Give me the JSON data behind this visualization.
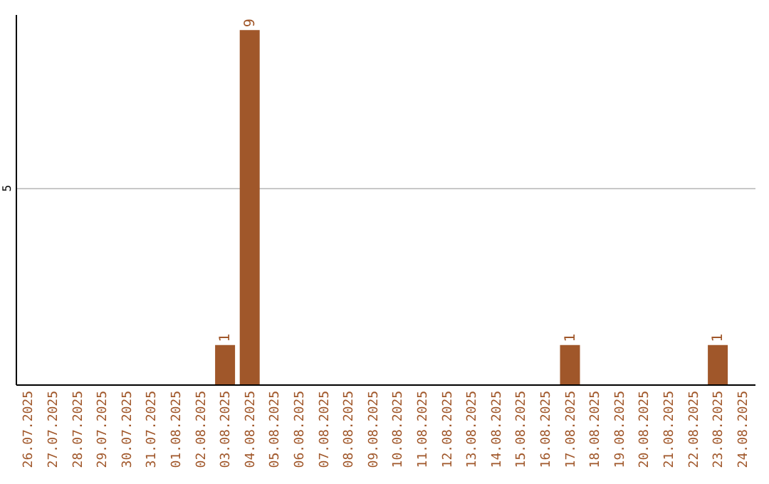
{
  "chart_data": {
    "type": "bar",
    "categories": [
      "26.07.2025",
      "27.07.2025",
      "28.07.2025",
      "29.07.2025",
      "30.07.2025",
      "31.07.2025",
      "01.08.2025",
      "02.08.2025",
      "03.08.2025",
      "04.08.2025",
      "05.08.2025",
      "06.08.2025",
      "07.08.2025",
      "08.08.2025",
      "09.08.2025",
      "10.08.2025",
      "11.08.2025",
      "12.08.2025",
      "13.08.2025",
      "14.08.2025",
      "15.08.2025",
      "16.08.2025",
      "17.08.2025",
      "18.08.2025",
      "19.08.2025",
      "20.08.2025",
      "21.08.2025",
      "22.08.2025",
      "23.08.2025",
      "24.08.2025"
    ],
    "values": [
      0,
      0,
      0,
      0,
      0,
      0,
      0,
      0,
      1,
      9,
      0,
      0,
      0,
      0,
      0,
      0,
      0,
      0,
      0,
      0,
      0,
      0,
      1,
      0,
      0,
      0,
      0,
      0,
      1,
      0
    ],
    "color": "#a0572a",
    "ylim": [
      0,
      9.4
    ],
    "yticks": [
      5
    ],
    "grid": "y",
    "value_labels": [
      null,
      null,
      null,
      null,
      null,
      null,
      null,
      null,
      "1",
      "9",
      null,
      null,
      null,
      null,
      null,
      null,
      null,
      null,
      null,
      null,
      null,
      null,
      "1",
      null,
      null,
      null,
      null,
      null,
      "1",
      null
    ]
  }
}
